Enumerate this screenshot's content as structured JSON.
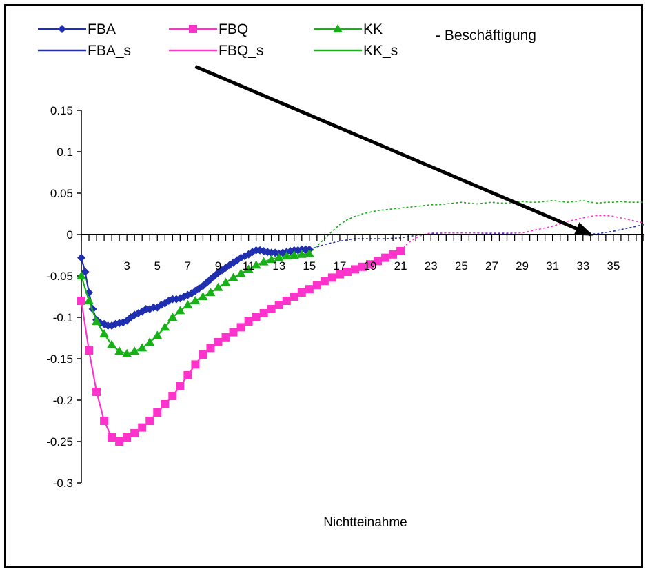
{
  "chart_data": {
    "type": "line",
    "title": "",
    "xlabel": "Nichtteinahme",
    "ylabel": "",
    "ylim": [
      -0.3,
      0.15
    ],
    "xlim": [
      0,
      37
    ],
    "y_ticks": [
      "0.15",
      "0.1",
      "0.05",
      "0",
      "-0.05",
      "-0.1",
      "-0.15",
      "-0.2",
      "-0.25",
      "-0.3"
    ],
    "y_tick_values": [
      0.15,
      0.1,
      0.05,
      0,
      -0.05,
      -0.1,
      -0.15,
      -0.2,
      -0.25,
      -0.3
    ],
    "x_ticks": [
      "3",
      "5",
      "7",
      "9",
      "11",
      "13",
      "15",
      "17",
      "19",
      "21",
      "23",
      "25",
      "27",
      "29",
      "31",
      "33",
      "35"
    ],
    "x_tick_values": [
      3,
      5,
      7,
      9,
      11,
      13,
      15,
      17,
      19,
      21,
      23,
      25,
      27,
      29,
      31,
      33,
      35
    ],
    "legend": {
      "placement": "top",
      "entries": [
        "FBA",
        "FBQ",
        "KK",
        "FBA_s",
        "FBQ_s",
        "KK_s"
      ],
      "extra_text": "- Beschäftigung"
    },
    "series": [
      {
        "name": "FBA",
        "color": "#1f2fb0",
        "marker": "diamond",
        "x": [
          0,
          0.25,
          0.5,
          0.75,
          1,
          1.25,
          1.5,
          1.75,
          2,
          2.25,
          2.5,
          2.75,
          3,
          3.25,
          3.5,
          3.75,
          4,
          4.25,
          4.5,
          4.75,
          5,
          5.25,
          5.5,
          5.75,
          6,
          6.25,
          6.5,
          6.75,
          7,
          7.25,
          7.5,
          7.75,
          8,
          8.25,
          8.5,
          8.75,
          9,
          9.25,
          9.5,
          9.75,
          10,
          10.25,
          10.5,
          10.75,
          11,
          11.25,
          11.5,
          11.75,
          12,
          12.25,
          12.5,
          12.75,
          13,
          13.25,
          13.5,
          13.75,
          14,
          14.25,
          14.5,
          14.75,
          15
        ],
        "y": [
          -0.028,
          -0.045,
          -0.07,
          -0.09,
          -0.103,
          -0.107,
          -0.108,
          -0.11,
          -0.11,
          -0.108,
          -0.107,
          -0.106,
          -0.104,
          -0.1,
          -0.097,
          -0.095,
          -0.093,
          -0.09,
          -0.09,
          -0.088,
          -0.088,
          -0.085,
          -0.083,
          -0.08,
          -0.078,
          -0.078,
          -0.077,
          -0.075,
          -0.073,
          -0.071,
          -0.068,
          -0.065,
          -0.062,
          -0.058,
          -0.054,
          -0.05,
          -0.046,
          -0.043,
          -0.04,
          -0.037,
          -0.034,
          -0.031,
          -0.028,
          -0.026,
          -0.024,
          -0.021,
          -0.019,
          -0.019,
          -0.02,
          -0.021,
          -0.022,
          -0.022,
          -0.023,
          -0.022,
          -0.021,
          -0.02,
          -0.019,
          -0.019,
          -0.018,
          -0.018,
          -0.018
        ]
      },
      {
        "name": "FBQ",
        "color": "#ff33cc",
        "marker": "square",
        "x": [
          0,
          0.5,
          1,
          1.5,
          2,
          2.5,
          3,
          3.5,
          4,
          4.5,
          5,
          5.5,
          6,
          6.5,
          7,
          7.5,
          8,
          8.5,
          9,
          9.5,
          10,
          10.5,
          11,
          11.5,
          12,
          12.5,
          13,
          13.5,
          14,
          14.5,
          15,
          15.5,
          16,
          16.5,
          17,
          17.5,
          18,
          18.5,
          19,
          19.5,
          20,
          20.5,
          21
        ],
        "y": [
          -0.08,
          -0.14,
          -0.19,
          -0.225,
          -0.245,
          -0.25,
          -0.245,
          -0.24,
          -0.233,
          -0.225,
          -0.215,
          -0.205,
          -0.195,
          -0.183,
          -0.17,
          -0.157,
          -0.145,
          -0.137,
          -0.13,
          -0.124,
          -0.118,
          -0.112,
          -0.105,
          -0.1,
          -0.095,
          -0.09,
          -0.085,
          -0.08,
          -0.075,
          -0.07,
          -0.066,
          -0.061,
          -0.056,
          -0.052,
          -0.048,
          -0.045,
          -0.042,
          -0.039,
          -0.036,
          -0.032,
          -0.028,
          -0.024,
          -0.02
        ]
      },
      {
        "name": "KK",
        "color": "#17b017",
        "marker": "triangle",
        "x": [
          0,
          0.5,
          1,
          1.5,
          2,
          2.5,
          3,
          3.5,
          4,
          4.5,
          5,
          5.5,
          6,
          6.5,
          7,
          7.5,
          8,
          8.5,
          9,
          9.5,
          10,
          10.5,
          11,
          11.5,
          12,
          12.5,
          13,
          13.5,
          14,
          14.5,
          15
        ],
        "y": [
          -0.05,
          -0.08,
          -0.105,
          -0.12,
          -0.133,
          -0.141,
          -0.144,
          -0.141,
          -0.137,
          -0.13,
          -0.122,
          -0.112,
          -0.1,
          -0.092,
          -0.085,
          -0.08,
          -0.075,
          -0.07,
          -0.064,
          -0.058,
          -0.052,
          -0.047,
          -0.042,
          -0.037,
          -0.033,
          -0.03,
          -0.028,
          -0.026,
          -0.025,
          -0.024,
          -0.023
        ]
      },
      {
        "name": "FBA_s",
        "color": "#1f2fb0",
        "marker": "none",
        "x": [
          15,
          16,
          17,
          18,
          19,
          20,
          21,
          22,
          23,
          24,
          25,
          26,
          27,
          28,
          29,
          30,
          31,
          32,
          33,
          34,
          35,
          36,
          37
        ],
        "y": [
          -0.018,
          -0.012,
          -0.008,
          -0.005,
          -0.005,
          -0.005,
          -0.004,
          -0.001,
          0.001,
          0.002,
          0.002,
          0.002,
          0.001,
          0.001,
          0.0,
          0.0,
          0.0,
          0.0,
          0.0,
          0.001,
          0.004,
          0.008,
          0.012
        ]
      },
      {
        "name": "FBQ_s",
        "color": "#ff33cc",
        "marker": "none",
        "x": [
          21,
          21.5,
          22,
          22.5,
          23,
          23.5,
          24,
          24.5,
          25,
          25.5,
          26,
          26.5,
          27,
          27.5,
          28,
          28.5,
          29,
          29.5,
          30,
          30.5,
          31,
          31.5,
          32,
          32.5,
          33,
          33.5,
          34,
          34.5,
          35,
          35.5,
          36,
          36.5,
          37
        ],
        "y": [
          -0.02,
          -0.01,
          -0.004,
          0.0,
          0.002,
          0.002,
          0.002,
          0.002,
          0.002,
          0.002,
          0.002,
          0.002,
          0.002,
          0.002,
          0.002,
          0.002,
          0.002,
          0.004,
          0.006,
          0.008,
          0.01,
          0.013,
          0.016,
          0.018,
          0.02,
          0.022,
          0.023,
          0.023,
          0.022,
          0.02,
          0.018,
          0.016,
          0.014
        ]
      },
      {
        "name": "KK_s",
        "color": "#17b017",
        "marker": "none",
        "x": [
          15,
          15.5,
          16,
          16.5,
          17,
          17.5,
          18,
          18.5,
          19,
          19.5,
          20,
          20.5,
          21,
          21.5,
          22,
          22.5,
          23,
          23.5,
          24,
          24.5,
          25,
          25.5,
          26,
          26.5,
          27,
          27.5,
          28,
          28.5,
          29,
          29.5,
          30,
          30.5,
          31,
          31.5,
          32,
          32.5,
          33,
          33.5,
          34,
          34.5,
          35,
          35.5,
          36,
          36.5,
          37
        ],
        "y": [
          -0.023,
          -0.014,
          -0.005,
          0.004,
          0.012,
          0.018,
          0.022,
          0.025,
          0.027,
          0.029,
          0.03,
          0.031,
          0.032,
          0.033,
          0.034,
          0.035,
          0.036,
          0.036,
          0.037,
          0.038,
          0.039,
          0.038,
          0.037,
          0.038,
          0.039,
          0.038,
          0.038,
          0.039,
          0.04,
          0.039,
          0.039,
          0.04,
          0.041,
          0.04,
          0.039,
          0.04,
          0.041,
          0.039,
          0.038,
          0.039,
          0.039,
          0.04,
          0.039,
          0.039,
          0.039
        ]
      }
    ],
    "annotation": {
      "type": "arrow",
      "from": [
        7.5,
        0.203
      ],
      "to": [
        33.5,
        0.0
      ]
    }
  }
}
